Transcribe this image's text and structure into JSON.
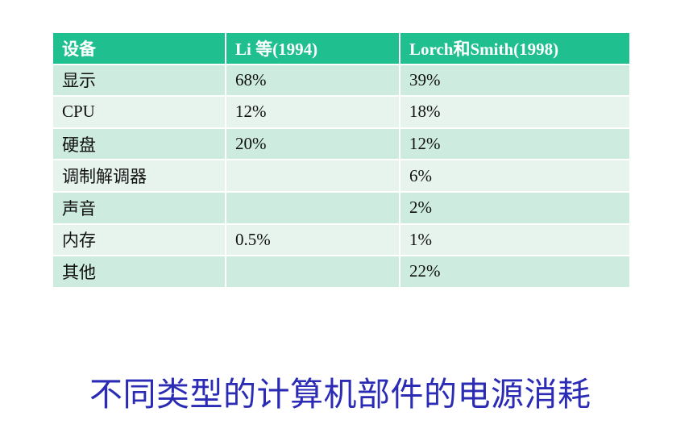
{
  "table": {
    "headers": [
      "设备",
      "Li  等(1994)",
      "Lorch和Smith(1998)"
    ],
    "rows": [
      [
        "显示",
        "68%",
        "39%"
      ],
      [
        "CPU",
        "12%",
        "18%"
      ],
      [
        "硬盘",
        "20%",
        "12%"
      ],
      [
        "调制解调器",
        "",
        "6%"
      ],
      [
        "声音",
        "",
        "2%"
      ],
      [
        "内存",
        "0.5%",
        "1%"
      ],
      [
        "其他",
        "",
        "22%"
      ]
    ]
  },
  "caption": "不同类型的计算机部件的电源消耗",
  "colors": {
    "header_bg": "#1fbf8f",
    "row_dark": "#cdebdf",
    "row_light": "#e7f4ee",
    "caption": "#2b2bb5"
  }
}
